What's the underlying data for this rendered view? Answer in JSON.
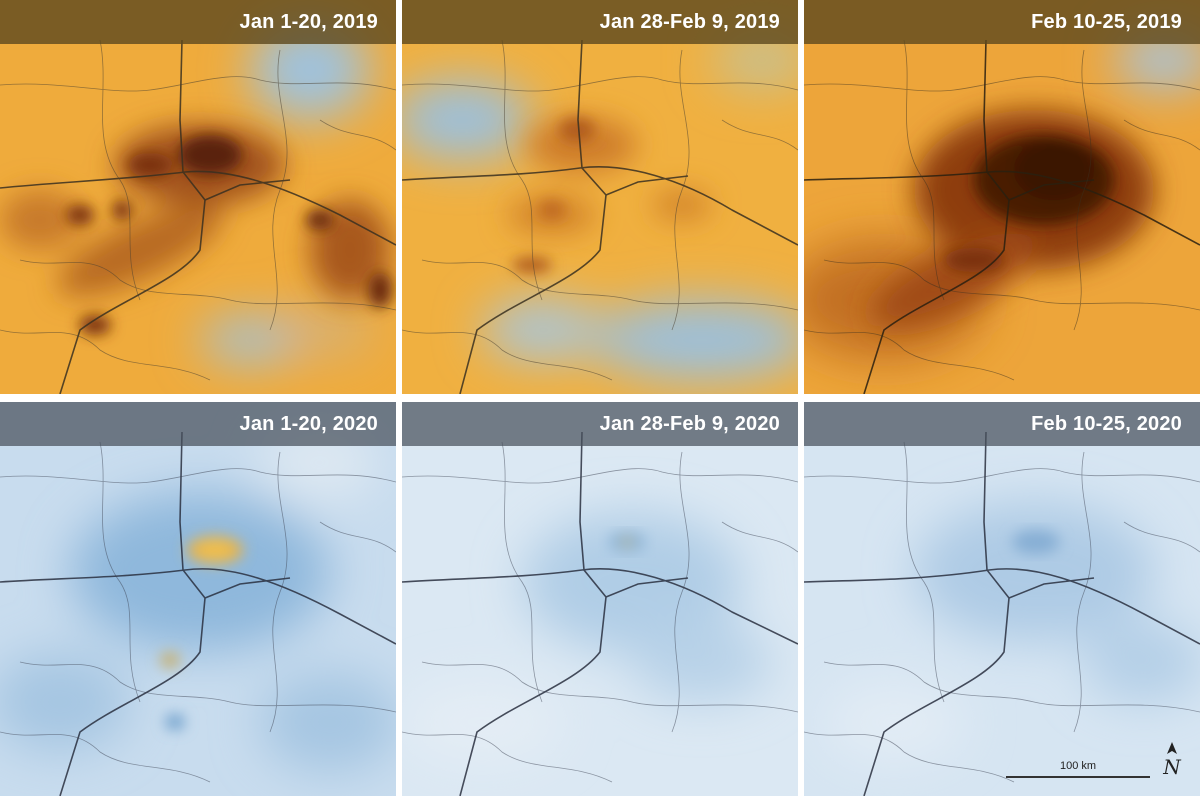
{
  "panels": [
    {
      "label": "Jan 1-20, 2019",
      "year": "2019",
      "intensity": "high"
    },
    {
      "label": "Jan 28-Feb 9, 2019",
      "year": "2019",
      "intensity": "medium"
    },
    {
      "label": "Feb 10-25, 2019",
      "year": "2019",
      "intensity": "very-high"
    },
    {
      "label": "Jan 1-20, 2020",
      "year": "2020",
      "intensity": "low"
    },
    {
      "label": "Jan 28-Feb 9, 2020",
      "year": "2020",
      "intensity": "very-low"
    },
    {
      "label": "Feb 10-25, 2020",
      "year": "2020",
      "intensity": "very-low"
    }
  ],
  "scale_bar": {
    "label": "100 km"
  },
  "north_arrow": {
    "label": "N",
    "icon": "north-arrow-icon"
  },
  "colors": {
    "high_concentration": "#4a1a05",
    "medium_concentration": "#e8a030",
    "low_concentration": "#a8c8e6",
    "label_bar_2019": "#5c481e",
    "label_bar_2020": "#48505c"
  }
}
